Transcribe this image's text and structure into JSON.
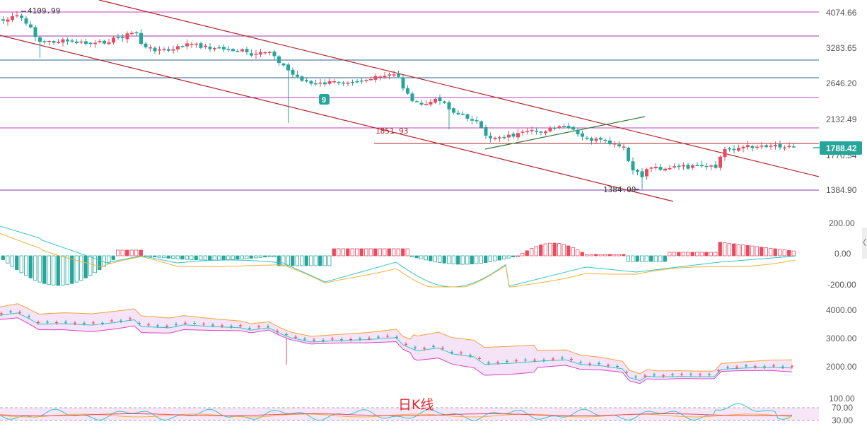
{
  "chart_data": [
    {
      "type": "candlestick",
      "panel": "price",
      "ticks": [
        "4074.66",
        "3283.65",
        "2646.20",
        "2132.49",
        "1384.90"
      ],
      "current_price": "1788.42",
      "annotations": {
        "high": "4109.99",
        "mid_low": "1851.93",
        "low": "1384.00"
      },
      "hidden_label": "1770.54",
      "badge": "9",
      "colors": {
        "up": "#e84a5f",
        "down": "#26a69a",
        "channel": "#b4232a",
        "hline": "#c040c0",
        "hline_blue": "#2d5f8a",
        "trend": "#2e7d32",
        "tag_bg": "#26a69a"
      }
    },
    {
      "type": "bar",
      "panel": "macd",
      "ticks": [
        "200.00",
        "0.00",
        "-200.00"
      ],
      "series": [
        {
          "color": "#35c4c4"
        },
        {
          "color": "#f2b23a"
        }
      ]
    },
    {
      "type": "line",
      "panel": "boll",
      "ticks": [
        "4000.00",
        "3000.00",
        "2000.00"
      ],
      "colors": {
        "upper": "#f2a23a",
        "lower": "#d642c8",
        "mid": "#35c4c4",
        "fill": "#f3dcf5"
      }
    },
    {
      "type": "line",
      "panel": "rsi",
      "ticks": [
        "100.00",
        "70.00",
        "30.00"
      ],
      "colors": {
        "a": "#35c4c4",
        "b": "#f2b23a",
        "c": "#e84a5f",
        "band": "#f3dcf5"
      }
    }
  ],
  "caption": "日K线"
}
